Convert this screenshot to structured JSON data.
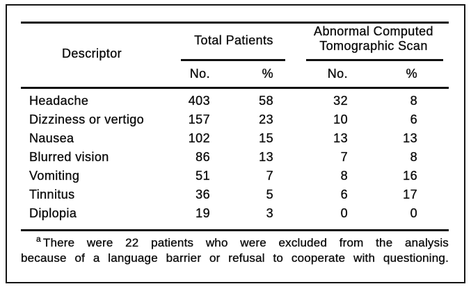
{
  "colors": {
    "ink": "#0d0d0d",
    "background": "#ffffff",
    "frame_border": "#141414"
  },
  "table": {
    "header": {
      "descriptor": "Descriptor",
      "group_total": "Total Patients",
      "group_ct": "Abnormal Computed Tomographic Scan",
      "no": "No.",
      "pct": "%"
    },
    "rows": [
      {
        "descriptor": "Headache",
        "total_no": "403",
        "total_pct": "58",
        "ct_no": "32",
        "ct_pct": "8"
      },
      {
        "descriptor": "Dizziness or vertigo",
        "total_no": "157",
        "total_pct": "23",
        "ct_no": "10",
        "ct_pct": "6"
      },
      {
        "descriptor": "Nausea",
        "total_no": "102",
        "total_pct": "15",
        "ct_no": "13",
        "ct_pct": "13"
      },
      {
        "descriptor": "Blurred vision",
        "total_no": "86",
        "total_pct": "13",
        "ct_no": "7",
        "ct_pct": "8"
      },
      {
        "descriptor": "Vomiting",
        "total_no": "51",
        "total_pct": "7",
        "ct_no": "8",
        "ct_pct": "16"
      },
      {
        "descriptor": "Tinnitus",
        "total_no": "36",
        "total_pct": "5",
        "ct_no": "6",
        "ct_pct": "17"
      },
      {
        "descriptor": "Diplopia",
        "total_no": "19",
        "total_pct": "3",
        "ct_no": "0",
        "ct_pct": "0"
      }
    ]
  },
  "footnote": {
    "marker": "a",
    "line1": "There were 22 patients who were excluded from the analysis",
    "line2": "because of a language barrier or refusal to cooperate with questioning."
  }
}
